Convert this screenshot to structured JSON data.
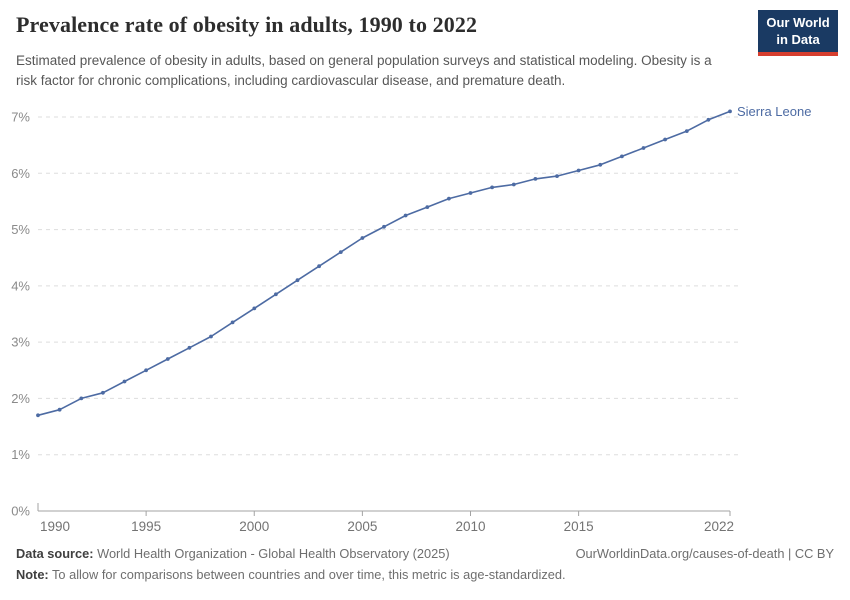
{
  "header": {
    "title": "Prevalence rate of obesity in adults, 1990 to 2022",
    "subtitle": "Estimated prevalence of obesity in adults, based on general population surveys and statistical modeling. Obesity is a risk factor for chronic complications, including cardiovascular disease, and premature death.",
    "logo_line1": "Our World",
    "logo_line2": "in Data"
  },
  "chart_data": {
    "type": "line",
    "title": "Prevalence rate of obesity in adults, 1990 to 2022",
    "xlabel": "",
    "ylabel": "",
    "xlim": [
      1990,
      2022
    ],
    "ylim": [
      0,
      7
    ],
    "grid": "horizontal-dashed",
    "legend_position": "end-of-line-label",
    "x_ticks": [
      {
        "value": 1990,
        "label": "1990"
      },
      {
        "value": 1995,
        "label": "1995"
      },
      {
        "value": 2000,
        "label": "2000"
      },
      {
        "value": 2005,
        "label": "2005"
      },
      {
        "value": 2010,
        "label": "2010"
      },
      {
        "value": 2015,
        "label": "2015"
      },
      {
        "value": 2022,
        "label": "2022"
      }
    ],
    "y_ticks": [
      {
        "value": 0,
        "label": "0%"
      },
      {
        "value": 1,
        "label": "1%"
      },
      {
        "value": 2,
        "label": "2%"
      },
      {
        "value": 3,
        "label": "3%"
      },
      {
        "value": 4,
        "label": "4%"
      },
      {
        "value": 5,
        "label": "5%"
      },
      {
        "value": 6,
        "label": "6%"
      },
      {
        "value": 7,
        "label": "7%"
      }
    ],
    "series": [
      {
        "name": "Sierra Leone",
        "color": "#4d6ba3",
        "x": [
          1990,
          1991,
          1992,
          1993,
          1994,
          1995,
          1996,
          1997,
          1998,
          1999,
          2000,
          2001,
          2002,
          2003,
          2004,
          2005,
          2006,
          2007,
          2008,
          2009,
          2010,
          2011,
          2012,
          2013,
          2014,
          2015,
          2016,
          2017,
          2018,
          2019,
          2020,
          2021,
          2022
        ],
        "values": [
          1.7,
          1.8,
          2.0,
          2.1,
          2.3,
          2.5,
          2.7,
          2.9,
          3.1,
          3.35,
          3.6,
          3.85,
          4.1,
          4.35,
          4.6,
          4.85,
          5.05,
          5.25,
          5.4,
          5.55,
          5.65,
          5.75,
          5.8,
          5.9,
          5.95,
          6.05,
          6.15,
          6.3,
          6.45,
          6.6,
          6.75,
          6.95,
          7.1
        ]
      }
    ]
  },
  "footer": {
    "data_source_label": "Data source:",
    "data_source": "World Health Organization - Global Health Observatory (2025)",
    "note_label": "Note:",
    "note": "To allow for comparisons between countries and over time, this metric is age-standardized.",
    "link": "OurWorldinData.org/causes-of-death | CC BY"
  },
  "colors": {
    "accent_line": "#4d6ba3",
    "logo_background": "#1a3a63",
    "logo_bar": "#d63e2e",
    "title_text": "#2d2d2d",
    "subtitle_text": "#575757",
    "axis_text": "#8a8a8a",
    "gridline": "#dddddd",
    "axis_line": "#a3a3a3"
  }
}
